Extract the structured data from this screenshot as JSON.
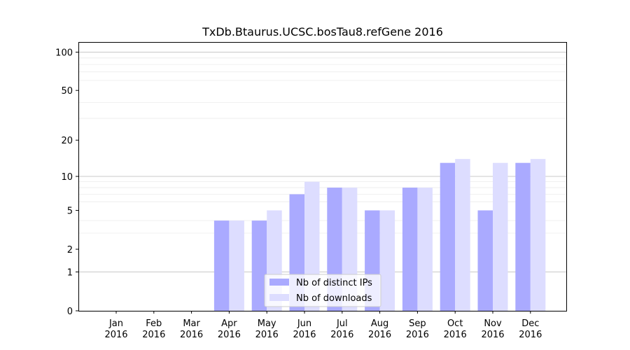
{
  "chart_data": {
    "type": "bar",
    "title": "TxDb.Btaurus.UCSC.bosTau8.refGene 2016",
    "xlabel": "",
    "ylabel": "",
    "y_scale": "log(1+y)",
    "ylim": [
      0,
      120
    ],
    "y_ticks": [
      0,
      1,
      2,
      5,
      10,
      20,
      50,
      100
    ],
    "grid": "y major and minor",
    "legend_position": "lower center",
    "categories": [
      [
        "Jan",
        "2016"
      ],
      [
        "Feb",
        "2016"
      ],
      [
        "Mar",
        "2016"
      ],
      [
        "Apr",
        "2016"
      ],
      [
        "May",
        "2016"
      ],
      [
        "Jun",
        "2016"
      ],
      [
        "Jul",
        "2016"
      ],
      [
        "Aug",
        "2016"
      ],
      [
        "Sep",
        "2016"
      ],
      [
        "Oct",
        "2016"
      ],
      [
        "Nov",
        "2016"
      ],
      [
        "Dec",
        "2016"
      ]
    ],
    "series": [
      {
        "name": "Nb of distinct IPs",
        "color": "#aaaaff",
        "values": [
          0,
          0,
          0,
          4,
          4,
          7,
          8,
          5,
          8,
          13,
          5,
          13
        ]
      },
      {
        "name": "Nb of downloads",
        "color": "#ddddff",
        "values": [
          0,
          0,
          0,
          4,
          5,
          9,
          8,
          5,
          8,
          14,
          13,
          14
        ]
      }
    ]
  }
}
